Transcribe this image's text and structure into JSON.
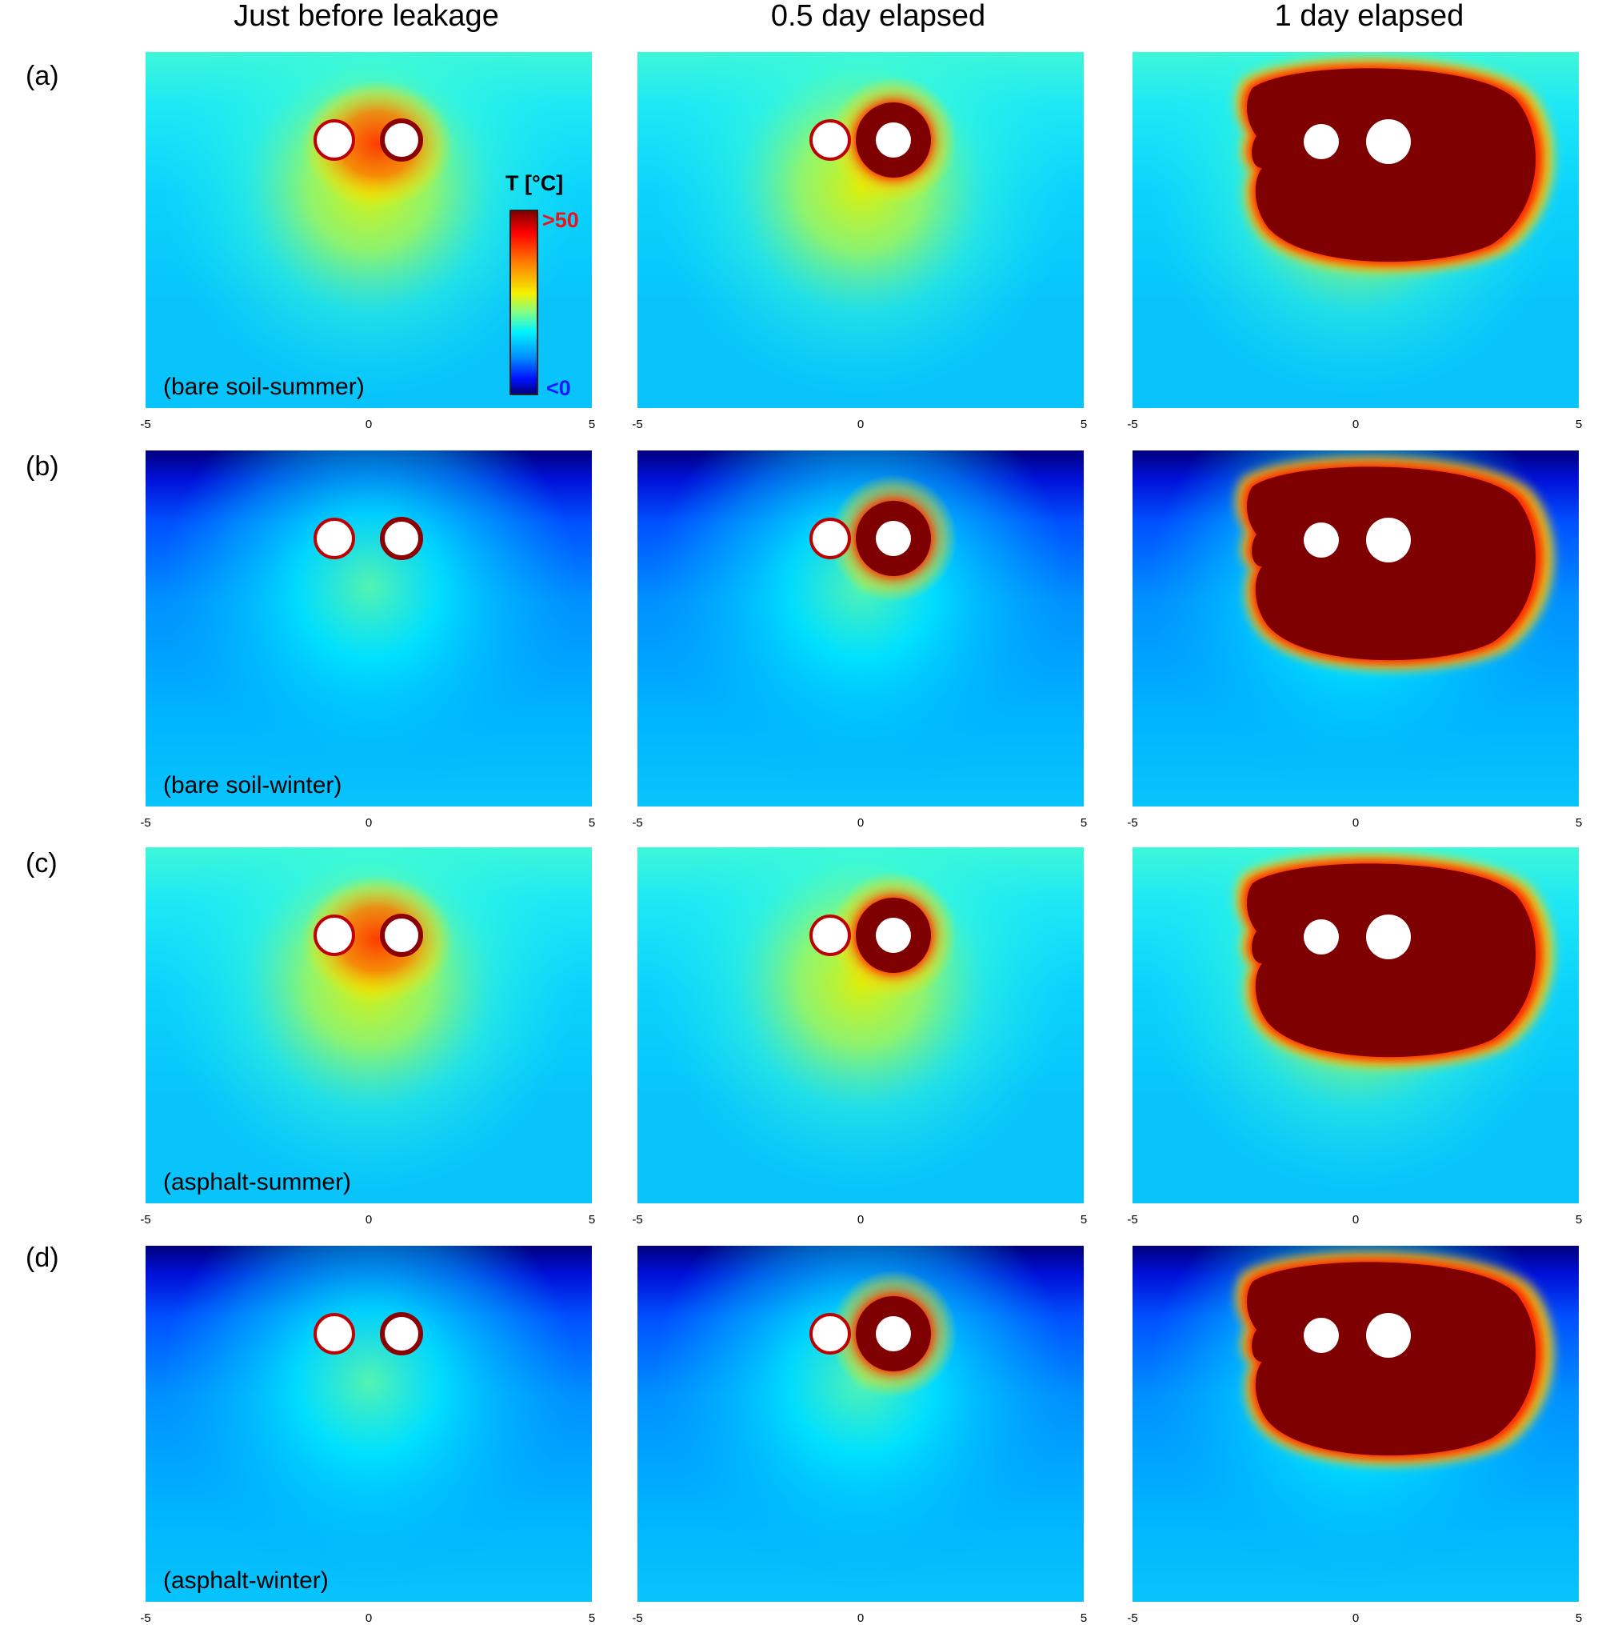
{
  "columns": [
    "Just before leakage",
    "0.5 day elapsed",
    "1 day elapsed"
  ],
  "rows": [
    {
      "label": "(a)",
      "case": "(bare soil-summer)",
      "surface": "summer"
    },
    {
      "label": "(b)",
      "case": "(bare soil-winter)",
      "surface": "winter"
    },
    {
      "label": "(c)",
      "case": "(asphalt-summer)",
      "surface": "summer"
    },
    {
      "label": "(d)",
      "case": "(asphalt-winter)",
      "surface": "winter"
    }
  ],
  "colorbar": {
    "title": "T [°C]",
    "max_label": ">50",
    "min_label": "<0",
    "colors": [
      "#7f0000",
      "#ff0000",
      "#ff8a00",
      "#f4f000",
      "#86ff80",
      "#00f4ff",
      "#0090ff",
      "#0010ff",
      "#00007f"
    ]
  },
  "chart_data": {
    "type": "heatmap",
    "x_ticks": [
      "-5",
      "0",
      "5"
    ],
    "xlim": [
      -5,
      5
    ],
    "color_range_C": [
      0,
      50
    ],
    "pipes_x": [
      -0.75,
      0.75
    ],
    "stages": [
      "Just before leakage",
      "0.5 day elapsed",
      "1 day elapsed"
    ],
    "cases": [
      "(bare soil-summer)",
      "(bare soil-winter)",
      "(asphalt-summer)",
      "(asphalt-winter)"
    ]
  }
}
